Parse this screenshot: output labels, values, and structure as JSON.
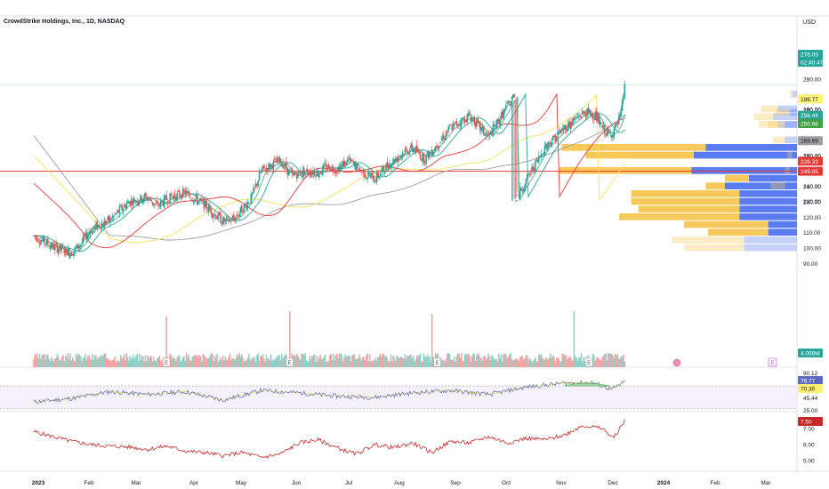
{
  "header": {
    "title": "CrowdStrike Holdings, Inc., 1D, NASDAQ",
    "currency": "USD"
  },
  "colors": {
    "up": "#26a69a",
    "down": "#ef5350",
    "ma_short": "#26a69a",
    "ma_mid": "#e53935",
    "ma_long": "#f5e05a",
    "ma_200": "#9e9e9e",
    "hline": "#e53935",
    "rsi": "#5c6bc0",
    "rsi_ma": "#f5e05a",
    "lower": "#c62828",
    "vp_up": "#5b7cf0",
    "vp_down": "#f7c85a"
  },
  "chart_data": [
    {
      "type": "candlestick",
      "title": "CrowdStrike Holdings, Inc., 1D, NASDAQ",
      "y_axis_ticks": [
        280,
        260,
        240,
        230,
        220,
        210,
        200,
        190,
        180,
        160,
        150,
        140,
        130,
        120,
        110,
        100,
        90
      ],
      "ylim": [
        90,
        282
      ],
      "x_axis_labels": [
        "2023",
        "Feb",
        "Mar",
        "Apr",
        "May",
        "Jun",
        "Jul",
        "Aug",
        "Sep",
        "Oct",
        "Nov",
        "Dec",
        "2024",
        "Feb",
        "Mar"
      ],
      "close_path": [
        [
          0,
          108
        ],
        [
          1,
          101
        ],
        [
          2,
          97
        ],
        [
          2.5,
          103
        ],
        [
          3,
          112
        ],
        [
          4,
          118
        ],
        [
          5,
          130
        ],
        [
          6,
          133
        ],
        [
          6.5,
          127
        ],
        [
          7,
          132
        ],
        [
          8,
          136
        ],
        [
          9,
          128
        ],
        [
          10,
          117
        ],
        [
          10.6,
          119
        ],
        [
          11.5,
          133
        ],
        [
          12,
          150
        ],
        [
          13,
          157
        ],
        [
          13.6,
          147
        ],
        [
          14.5,
          150
        ],
        [
          15,
          149
        ],
        [
          15.5,
          153
        ],
        [
          16,
          151
        ],
        [
          16.6,
          157
        ],
        [
          17.5,
          148
        ],
        [
          18,
          145
        ],
        [
          18.6,
          153
        ],
        [
          19.5,
          162
        ],
        [
          20,
          165
        ],
        [
          20.6,
          158
        ],
        [
          21,
          163
        ],
        [
          22,
          178
        ],
        [
          23,
          186
        ],
        [
          23.6,
          177
        ],
        [
          24,
          172
        ],
        [
          25,
          192
        ],
        [
          26,
          214
        ],
        [
          27,
          236
        ],
        [
          28,
          248
        ],
        [
          29,
          258
        ],
        [
          29.6,
          257
        ],
        [
          30,
          248
        ],
        [
          30.4,
          243
        ],
        [
          30.8,
          250
        ],
        [
          31,
          258
        ],
        [
          31.1,
          268
        ],
        [
          31.2,
          276.09
        ]
      ],
      "last_price": "276.09",
      "countdown": "02:40:47",
      "moving_averages": [
        {
          "name": "MA short",
          "last": "256.44"
        },
        {
          "name": "MA mid",
          "last": "250.96"
        },
        {
          "name": "MA 50",
          "last": "226.33"
        },
        {
          "name": "MA 100",
          "last": "196.77"
        },
        {
          "name": "MA 200",
          "last": "169.69"
        }
      ],
      "horizontal_line": {
        "price": 149.85,
        "label": "149.85"
      },
      "earnings_markers": [
        "E",
        "E",
        "E",
        "E",
        "E"
      ]
    },
    {
      "type": "bar",
      "name": "volume",
      "last_label": "4.059M",
      "spikes": [
        [
          7,
          9.5
        ],
        [
          13.5,
          10.5
        ],
        [
          21,
          10
        ],
        [
          28.5,
          10.5
        ]
      ]
    },
    {
      "type": "line",
      "name": "RSI",
      "ticks": [
        "90.12",
        "45.44",
        "25.00"
      ],
      "last_values": [
        "76.77",
        "70.30"
      ],
      "upper": 70,
      "lower": 30,
      "path": [
        [
          0,
          42
        ],
        [
          2,
          48
        ],
        [
          4,
          60
        ],
        [
          6,
          55
        ],
        [
          8,
          60
        ],
        [
          10,
          45
        ],
        [
          12,
          62
        ],
        [
          14,
          58
        ],
        [
          16,
          52
        ],
        [
          18,
          50
        ],
        [
          20,
          58
        ],
        [
          22,
          62
        ],
        [
          24,
          55
        ],
        [
          26,
          68
        ],
        [
          28,
          75
        ],
        [
          29.5,
          76
        ],
        [
          30.5,
          64
        ],
        [
          31.2,
          76.77
        ]
      ]
    },
    {
      "type": "line",
      "name": "lower-indicator",
      "ticks": [
        "7.00",
        "6.00",
        "5.00"
      ],
      "last_value": "7.50",
      "path": [
        [
          0,
          6.8
        ],
        [
          1,
          6.5
        ],
        [
          2,
          6.2
        ],
        [
          3,
          6.0
        ],
        [
          4,
          5.9
        ],
        [
          5,
          5.85
        ],
        [
          6,
          5.7
        ],
        [
          7,
          5.9
        ],
        [
          8,
          5.6
        ],
        [
          9,
          5.5
        ],
        [
          10,
          5.3
        ],
        [
          11,
          5.5
        ],
        [
          12,
          5.2
        ],
        [
          13,
          5.4
        ],
        [
          14,
          6.1
        ],
        [
          15,
          6.3
        ],
        [
          16,
          5.8
        ],
        [
          17,
          5.4
        ],
        [
          18,
          6.0
        ],
        [
          19,
          5.8
        ],
        [
          20,
          6.1
        ],
        [
          21,
          5.5
        ],
        [
          22,
          6.2
        ],
        [
          23,
          6.1
        ],
        [
          24,
          6.5
        ],
        [
          25,
          6.1
        ],
        [
          26,
          6.4
        ],
        [
          27,
          6.3
        ],
        [
          28,
          6.6
        ],
        [
          29,
          7.2
        ],
        [
          30,
          7.0
        ],
        [
          30.6,
          6.4
        ],
        [
          31.2,
          7.5
        ]
      ]
    }
  ]
}
